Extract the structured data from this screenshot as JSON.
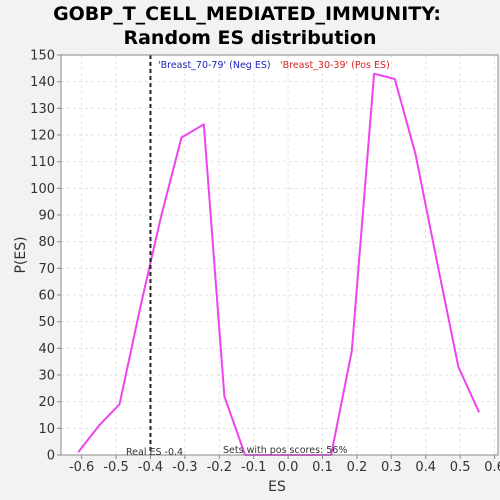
{
  "chart_data": {
    "type": "line",
    "title": "GOBP_T_CELL_MEDIATED_IMMUNITY:",
    "subtitle": "Random ES distribution",
    "xlabel": "ES",
    "ylabel": "P(ES)",
    "xlim": [
      -0.66,
      0.61
    ],
    "ylim": [
      0,
      150
    ],
    "x_ticks": [
      "-0.6",
      "-0.5",
      "-0.4",
      "-0.3",
      "-0.2",
      "-0.1",
      "0.0",
      "0.1",
      "0.2",
      "0.3",
      "0.4",
      "0.5",
      "0.6"
    ],
    "y_ticks": [
      "0",
      "10",
      "20",
      "30",
      "40",
      "50",
      "60",
      "70",
      "80",
      "90",
      "100",
      "110",
      "120",
      "130",
      "140",
      "150"
    ],
    "grid": true,
    "series": [
      {
        "color": "#ee44ee",
        "x": [
          -0.61,
          -0.55,
          -0.49,
          -0.43,
          -0.37,
          -0.31,
          -0.245,
          -0.185,
          -0.125,
          0.005,
          0.125,
          0.185,
          0.25,
          0.31,
          0.37,
          0.435,
          0.495,
          0.555
        ],
        "y": [
          1,
          11,
          19,
          55,
          89,
          119,
          124,
          22,
          0,
          0,
          0,
          39,
          143,
          141,
          113,
          71,
          33,
          16
        ]
      }
    ],
    "real_es": {
      "x": -0.4,
      "label": "Real ES -0.4"
    },
    "annotations": {
      "neg_label": "'Breast_70-79' (Neg ES)",
      "neg_color": "#2222bb",
      "pos_label": "'Breast_30-39' (Pos ES)",
      "pos_color": "#dd2222",
      "pos_scores": "Sets with pos scores: 56%"
    }
  }
}
